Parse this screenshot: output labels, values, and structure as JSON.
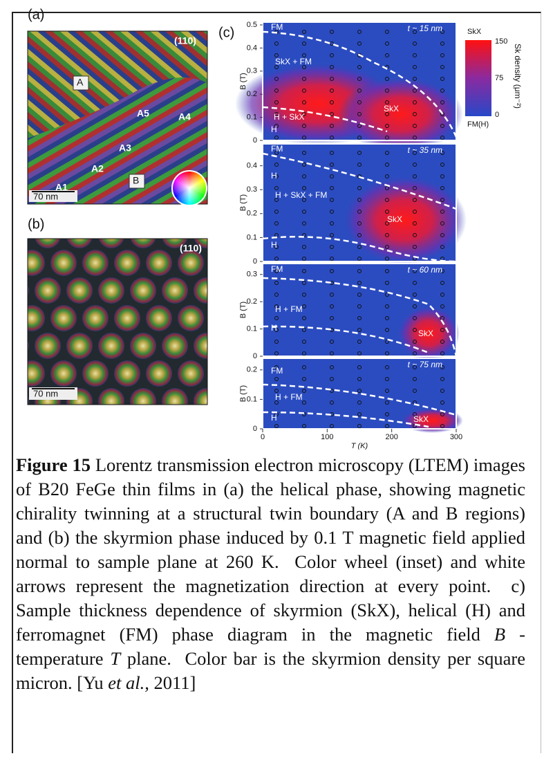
{
  "panels": {
    "a": {
      "label": "(a)",
      "orientation": "(110)",
      "regions": [
        "A",
        "A5",
        "A4",
        "A3",
        "A2",
        "A1",
        "B"
      ],
      "scale": "70 nm"
    },
    "b": {
      "label": "(b)",
      "orientation": "(110)",
      "scale": "70 nm"
    },
    "c": {
      "label": "(c)",
      "x_axis": "T (K)",
      "xticks": [
        "0",
        "100",
        "200",
        "300"
      ],
      "y_axis": "B (T)",
      "subpanels": [
        {
          "thickness": "t ~ 15 nm",
          "yticks": [
            "0",
            "0.1",
            "0.2",
            "0.3",
            "0.4",
            "0.5"
          ],
          "phases": [
            "FM",
            "SkX + FM",
            "H + SkX",
            "SkX",
            "H"
          ]
        },
        {
          "thickness": "t ~ 35 nm",
          "yticks": [
            "0",
            "0.1",
            "0.2",
            "0.3",
            "0.4"
          ],
          "phases": [
            "FM",
            "H",
            "H + SkX + FM",
            "SkX",
            "H"
          ]
        },
        {
          "thickness": "t ~ 60 nm",
          "yticks": [
            "0",
            "0.1",
            "0.2",
            "0.3"
          ],
          "phases": [
            "FM",
            "H + FM",
            "H",
            "SkX"
          ]
        },
        {
          "thickness": "t ~ 75 nm",
          "yticks": [
            "0",
            "0.1",
            "0.2"
          ],
          "phases": [
            "FM",
            "H + FM",
            "H",
            "SkX"
          ]
        }
      ],
      "colorbar": {
        "title": "SkX",
        "label": "Sk density (μm⁻²)",
        "ticks": [
          "150",
          "75",
          "0"
        ],
        "bottom": "FM(H)"
      }
    }
  },
  "caption": {
    "segments": [
      "Figure 15",
      " Lorentz transmission electron microscopy (LTEM) images of B20 FeGe thin films in (a) the helical phase, showing magnetic chirality twinning at a structural twin boundary (A and B regions) and (b) the skyrmion phase induced by 0.1 T magnetic field applied normal to sample plane at 260 K.  Color wheel (inset) and white arrows represent the magnetization direction at every point.  c) Sample thickness dependence of skyrmion (SkX), helical (H) and ferromagnet (FM) phase diagram in the magnetic field ",
      "B",
      " - temperature ",
      "T",
      " plane.  Color bar is the skyrmion density per square micron. [Yu ",
      "et al.,",
      " 2011]"
    ]
  }
}
